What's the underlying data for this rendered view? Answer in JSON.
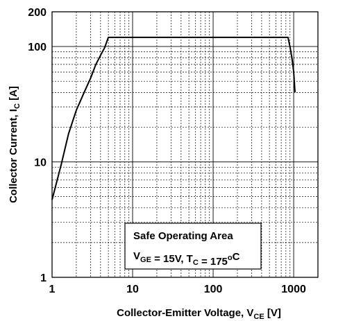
{
  "chart_data": {
    "type": "line",
    "scale": {
      "x": "log",
      "y": "log"
    },
    "xlim": [
      1,
      2000
    ],
    "ylim": [
      1,
      200
    ],
    "x_ticks": [
      {
        "value": 1,
        "label": "1"
      },
      {
        "value": 10,
        "label": "10"
      },
      {
        "value": 100,
        "label": "100"
      },
      {
        "value": 1000,
        "label": "1000"
      }
    ],
    "y_ticks": [
      {
        "value": 1,
        "label": "1"
      },
      {
        "value": 10,
        "label": "10"
      },
      {
        "value": 100,
        "label": "100"
      },
      {
        "value": 200,
        "label": "200"
      }
    ],
    "xlabel": {
      "main": "Collector-Emitter Voltage, V",
      "sub": "CE",
      "unit": " [V]"
    },
    "ylabel": {
      "main": "Collector Current, I",
      "sub": "C",
      "unit": " [A]"
    },
    "grid": true,
    "series": [
      {
        "x": [
          1.0,
          1.3,
          1.6,
          2.0,
          2.5,
          3.0,
          3.5,
          4.0,
          4.5,
          5.0,
          50,
          200,
          500,
          850,
          900,
          950,
          1000,
          1040
        ],
        "y": [
          4.7,
          9.5,
          17.5,
          28,
          40,
          53,
          70,
          84,
          98,
          120,
          120,
          120,
          120,
          120,
          99,
          80,
          60,
          40
        ]
      }
    ],
    "annotation": {
      "title": "Safe Operating Area",
      "line2_parts": [
        {
          "t": "V",
          "sub": false
        },
        {
          "t": "GE",
          "sub": true
        },
        {
          "t": " = 15V, T",
          "sub": false
        },
        {
          "t": "C",
          "sub": true
        },
        {
          "t": " = 175",
          "sub": false
        },
        {
          "t": "o",
          "sup": true
        },
        {
          "t": "C",
          "sub": false
        }
      ]
    },
    "colors": {
      "curve": "#000000",
      "grid": "#000000",
      "frame": "#000000"
    }
  }
}
